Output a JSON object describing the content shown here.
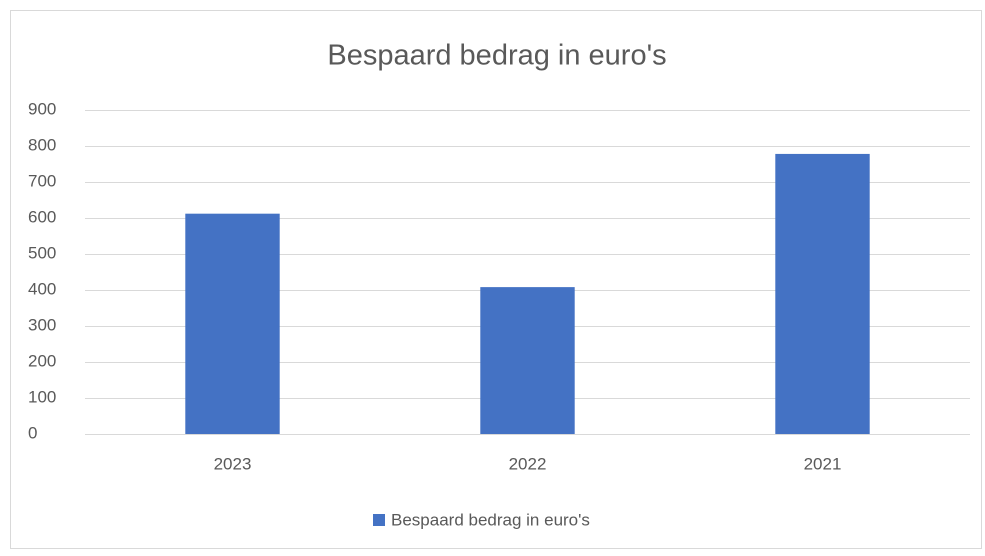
{
  "chart_data": {
    "type": "bar",
    "title": "Bespaard bedrag in euro's",
    "categories": [
      "2023",
      "2022",
      "2021"
    ],
    "series": [
      {
        "name": "Bespaard bedrag in euro's",
        "color": "#4472c4",
        "values": [
          612,
          408,
          778
        ]
      }
    ],
    "ylim": [
      0,
      900
    ],
    "yticks": [
      0,
      100,
      200,
      300,
      400,
      500,
      600,
      700,
      800,
      900
    ],
    "grid": true,
    "legend": "bottom"
  }
}
